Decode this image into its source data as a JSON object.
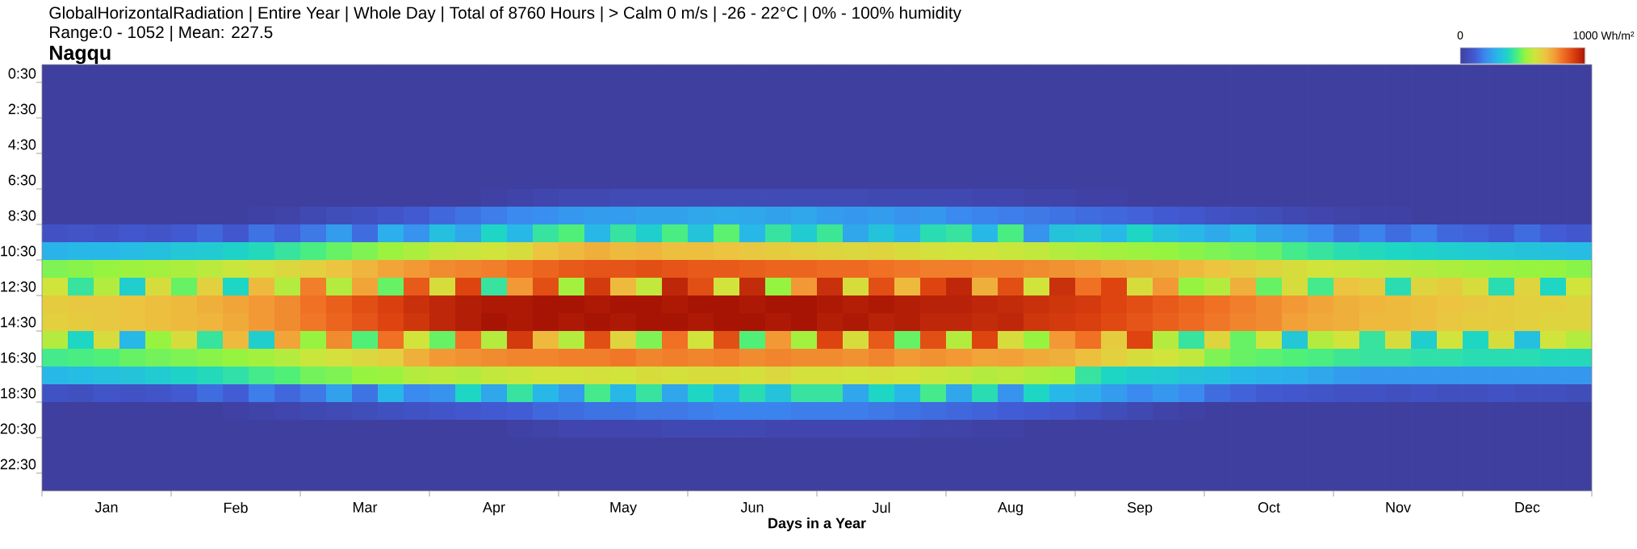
{
  "chart_data": {
    "type": "heatmap",
    "title": "GlobalHorizontalRadiation | Entire Year | Whole Day | Total of 8760 Hours | > Calm 0 m/s | -26 - 22°C | 0% - 100% humidity",
    "subtitle": "Range:0 - 1052 | Mean: 227.5",
    "annotations": [
      "Nagqu"
    ],
    "xlabel": "Days in a Year",
    "clabel": "Wh/m²",
    "clim": [
      0,
      1000
    ],
    "cticks": [
      0,
      1000
    ],
    "categories": [
      null,
      null,
      "Jan",
      null,
      null,
      null,
      null,
      "Feb",
      null,
      null,
      null,
      null,
      "Mar",
      null,
      null,
      null,
      null,
      "Apr",
      null,
      null,
      null,
      null,
      "May",
      null,
      null,
      null,
      null,
      "Jun",
      null,
      null,
      null,
      null,
      "Jul",
      null,
      null,
      null,
      null,
      "Aug",
      null,
      null,
      null,
      null,
      "Sep",
      null,
      null,
      null,
      null,
      "Oct",
      null,
      null,
      null,
      null,
      "Nov",
      null,
      null,
      null,
      null,
      "Dec",
      null,
      null
    ],
    "y_categories": [
      "0:30",
      null,
      "2:30",
      null,
      "4:30",
      null,
      "6:30",
      null,
      "8:30",
      null,
      "10:30",
      null,
      "12:30",
      null,
      "14:30",
      null,
      "16:30",
      null,
      "18:30",
      null,
      "20:30",
      null,
      "22:30",
      null
    ],
    "cells": [
      [
        0,
        0,
        0,
        0,
        0,
        0,
        0,
        0,
        0,
        0,
        0,
        0,
        0,
        0,
        0,
        0,
        0,
        0,
        0,
        0,
        0,
        0,
        0,
        0,
        0,
        0,
        0,
        0,
        0,
        0,
        0,
        0,
        0,
        0,
        0,
        0,
        0,
        0,
        0,
        0,
        0,
        0,
        0,
        0,
        0,
        0,
        0,
        0,
        0,
        0,
        0,
        0,
        0,
        0,
        0,
        0,
        0,
        0,
        0,
        0
      ],
      [
        0,
        0,
        0,
        0,
        0,
        0,
        0,
        0,
        0,
        0,
        0,
        0,
        0,
        0,
        0,
        0,
        0,
        0,
        0,
        0,
        0,
        0,
        0,
        0,
        0,
        0,
        0,
        0,
        0,
        0,
        0,
        0,
        0,
        0,
        0,
        0,
        0,
        0,
        0,
        0,
        0,
        0,
        0,
        0,
        0,
        0,
        0,
        0,
        0,
        0,
        0,
        0,
        0,
        0,
        0,
        0,
        0,
        0,
        0,
        0
      ],
      [
        0,
        0,
        0,
        0,
        0,
        0,
        0,
        0,
        0,
        0,
        0,
        0,
        0,
        0,
        0,
        0,
        0,
        0,
        0,
        0,
        0,
        0,
        0,
        0,
        0,
        0,
        0,
        0,
        0,
        0,
        0,
        0,
        0,
        0,
        0,
        0,
        0,
        0,
        0,
        0,
        0,
        0,
        0,
        0,
        0,
        0,
        0,
        0,
        0,
        0,
        0,
        0,
        0,
        0,
        0,
        0,
        0,
        0,
        0,
        0
      ],
      [
        0,
        0,
        0,
        0,
        0,
        0,
        0,
        0,
        0,
        0,
        0,
        0,
        0,
        0,
        0,
        0,
        0,
        0,
        0,
        0,
        0,
        0,
        0,
        0,
        0,
        0,
        0,
        0,
        0,
        0,
        0,
        0,
        0,
        0,
        0,
        0,
        0,
        0,
        0,
        0,
        0,
        0,
        0,
        0,
        0,
        0,
        0,
        0,
        0,
        0,
        0,
        0,
        0,
        0,
        0,
        0,
        0,
        0,
        0,
        0
      ],
      [
        0,
        0,
        0,
        0,
        0,
        0,
        0,
        0,
        0,
        0,
        0,
        0,
        0,
        0,
        0,
        0,
        0,
        0,
        0,
        0,
        0,
        0,
        0,
        0,
        0,
        0,
        0,
        0,
        0,
        0,
        0,
        0,
        0,
        0,
        0,
        0,
        0,
        0,
        0,
        0,
        0,
        0,
        0,
        0,
        0,
        0,
        0,
        0,
        0,
        0,
        0,
        0,
        0,
        0,
        0,
        0,
        0,
        0,
        0,
        0
      ],
      [
        0,
        0,
        0,
        0,
        0,
        0,
        0,
        0,
        0,
        0,
        0,
        0,
        0,
        0,
        0,
        0,
        0,
        0,
        0,
        0,
        0,
        0,
        0,
        0,
        0,
        0,
        0,
        0,
        0,
        0,
        0,
        0,
        0,
        0,
        0,
        0,
        0,
        0,
        0,
        0,
        0,
        0,
        0,
        0,
        0,
        0,
        0,
        0,
        0,
        0,
        0,
        0,
        0,
        0,
        0,
        0,
        0,
        0,
        0,
        0
      ],
      [
        0,
        0,
        0,
        0,
        0,
        0,
        0,
        0,
        0,
        0,
        0,
        0,
        0,
        0,
        0,
        0,
        0,
        0,
        0,
        0,
        0,
        0,
        0,
        0,
        0,
        0,
        0,
        0,
        0,
        0,
        0,
        0,
        0,
        0,
        0,
        0,
        0,
        0,
        0,
        0,
        0,
        0,
        0,
        0,
        0,
        0,
        0,
        0,
        0,
        0,
        0,
        0,
        0,
        0,
        0,
        0,
        0,
        0,
        0,
        0
      ],
      [
        0,
        0,
        0,
        0,
        0,
        0,
        0,
        0,
        0,
        0,
        0,
        0,
        0,
        0,
        0,
        0,
        0,
        10,
        20,
        30,
        40,
        40,
        50,
        50,
        50,
        50,
        50,
        50,
        50,
        50,
        50,
        50,
        40,
        40,
        40,
        40,
        30,
        30,
        20,
        20,
        10,
        10,
        0,
        0,
        0,
        0,
        0,
        0,
        0,
        0,
        0,
        0,
        0,
        0,
        0,
        0,
        0,
        0,
        0,
        0
      ],
      [
        0,
        0,
        0,
        0,
        0,
        0,
        0,
        0,
        10,
        20,
        40,
        60,
        70,
        90,
        110,
        140,
        160,
        180,
        200,
        210,
        230,
        240,
        240,
        250,
        250,
        260,
        270,
        260,
        250,
        260,
        240,
        230,
        240,
        220,
        230,
        200,
        190,
        180,
        170,
        160,
        150,
        140,
        130,
        110,
        100,
        80,
        70,
        60,
        40,
        30,
        20,
        10,
        10,
        0,
        0,
        0,
        0,
        0,
        0,
        0
      ],
      [
        80,
        90,
        80,
        100,
        90,
        110,
        140,
        100,
        160,
        130,
        170,
        240,
        150,
        280,
        220,
        320,
        260,
        380,
        300,
        420,
        460,
        300,
        420,
        360,
        450,
        330,
        470,
        300,
        420,
        350,
        430,
        260,
        330,
        280,
        400,
        420,
        300,
        450,
        220,
        330,
        340,
        300,
        380,
        320,
        300,
        270,
        300,
        250,
        230,
        200,
        160,
        190,
        150,
        180,
        140,
        130,
        110,
        150,
        120,
        100
      ],
      [
        290,
        300,
        300,
        310,
        320,
        340,
        350,
        370,
        390,
        420,
        450,
        480,
        500,
        530,
        550,
        580,
        590,
        600,
        620,
        680,
        700,
        720,
        700,
        710,
        690,
        690,
        680,
        670,
        660,
        650,
        640,
        630,
        640,
        620,
        610,
        600,
        600,
        590,
        580,
        560,
        550,
        540,
        530,
        520,
        510,
        500,
        490,
        480,
        440,
        420,
        400,
        390,
        380,
        370,
        360,
        350,
        340,
        330,
        320,
        310
      ],
      [
        500,
        510,
        520,
        530,
        540,
        550,
        570,
        590,
        610,
        630,
        650,
        680,
        710,
        740,
        760,
        780,
        790,
        800,
        820,
        840,
        860,
        870,
        870,
        880,
        870,
        860,
        860,
        850,
        840,
        840,
        830,
        830,
        820,
        810,
        800,
        800,
        790,
        790,
        780,
        770,
        760,
        740,
        730,
        720,
        700,
        680,
        660,
        640,
        620,
        600,
        590,
        580,
        570,
        560,
        550,
        540,
        530,
        520,
        520,
        510
      ],
      [
        600,
        420,
        560,
        360,
        620,
        480,
        650,
        380,
        700,
        560,
        800,
        560,
        740,
        480,
        860,
        620,
        900,
        420,
        760,
        880,
        540,
        920,
        700,
        580,
        960,
        880,
        600,
        950,
        520,
        760,
        940,
        620,
        880,
        700,
        900,
        960,
        720,
        880,
        600,
        940,
        820,
        900,
        620,
        760,
        520,
        560,
        720,
        480,
        620,
        440,
        680,
        660,
        400,
        640,
        660,
        620,
        400,
        640,
        380,
        600
      ],
      [
        660,
        670,
        670,
        680,
        690,
        700,
        720,
        740,
        760,
        780,
        820,
        850,
        880,
        910,
        940,
        960,
        980,
        990,
        990,
        1000,
        1000,
        990,
        1000,
        1000,
        990,
        1000,
        1000,
        990,
        1000,
        1000,
        990,
        980,
        990,
        980,
        970,
        970,
        960,
        950,
        940,
        930,
        920,
        900,
        880,
        860,
        840,
        820,
        800,
        780,
        760,
        740,
        720,
        710,
        700,
        690,
        680,
        670,
        660,
        650,
        650,
        640
      ],
      [
        650,
        660,
        670,
        680,
        690,
        700,
        710,
        730,
        760,
        780,
        810,
        840,
        870,
        900,
        930,
        960,
        980,
        1000,
        990,
        1000,
        990,
        1000,
        990,
        1000,
        1000,
        990,
        1000,
        1000,
        990,
        1000,
        980,
        990,
        970,
        980,
        960,
        960,
        950,
        960,
        930,
        920,
        910,
        890,
        870,
        850,
        830,
        810,
        790,
        780,
        750,
        730,
        720,
        700,
        700,
        690,
        670,
        660,
        660,
        650,
        640,
        640
      ],
      [
        560,
        380,
        620,
        300,
        520,
        620,
        420,
        700,
        360,
        740,
        520,
        780,
        460,
        820,
        600,
        480,
        820,
        560,
        920,
        700,
        560,
        880,
        640,
        500,
        820,
        600,
        880,
        460,
        760,
        540,
        900,
        620,
        860,
        480,
        880,
        560,
        900,
        620,
        520,
        760,
        820,
        660,
        900,
        560,
        420,
        640,
        480,
        600,
        340,
        560,
        600,
        420,
        620,
        360,
        600,
        380,
        620,
        320,
        600,
        560
      ],
      [
        440,
        450,
        460,
        480,
        490,
        500,
        510,
        520,
        540,
        560,
        590,
        610,
        630,
        650,
        720,
        760,
        770,
        780,
        790,
        790,
        800,
        800,
        810,
        790,
        800,
        790,
        800,
        780,
        790,
        780,
        780,
        770,
        790,
        760,
        770,
        760,
        740,
        750,
        730,
        720,
        690,
        650,
        620,
        600,
        580,
        500,
        480,
        470,
        460,
        450,
        430,
        420,
        420,
        410,
        410,
        400,
        400,
        400,
        390,
        390
      ],
      [
        300,
        310,
        320,
        330,
        350,
        370,
        390,
        410,
        440,
        460,
        490,
        500,
        520,
        530,
        560,
        570,
        560,
        580,
        590,
        600,
        600,
        610,
        600,
        620,
        610,
        620,
        620,
        610,
        630,
        610,
        610,
        600,
        610,
        600,
        590,
        580,
        560,
        570,
        550,
        540,
        420,
        380,
        360,
        350,
        330,
        320,
        300,
        290,
        280,
        260,
        240,
        230,
        230,
        230,
        230,
        230,
        230,
        230,
        230,
        230
      ],
      [
        80,
        70,
        90,
        80,
        90,
        110,
        150,
        120,
        180,
        140,
        170,
        250,
        160,
        300,
        200,
        220,
        380,
        260,
        420,
        300,
        240,
        440,
        300,
        420,
        260,
        380,
        300,
        400,
        330,
        420,
        420,
        260,
        380,
        300,
        440,
        260,
        400,
        220,
        380,
        300,
        280,
        240,
        200,
        230,
        200,
        150,
        130,
        110,
        100,
        90,
        80,
        80,
        70,
        80,
        70,
        70,
        80,
        70,
        70,
        60
      ],
      [
        0,
        0,
        0,
        0,
        0,
        0,
        0,
        10,
        20,
        30,
        40,
        50,
        60,
        70,
        80,
        90,
        100,
        110,
        120,
        140,
        150,
        160,
        160,
        170,
        170,
        180,
        190,
        190,
        190,
        180,
        180,
        180,
        170,
        160,
        150,
        140,
        130,
        120,
        110,
        100,
        80,
        60,
        40,
        20,
        10,
        0,
        0,
        0,
        0,
        0,
        0,
        0,
        0,
        0,
        0,
        0,
        0,
        0,
        0,
        0
      ],
      [
        0,
        0,
        0,
        0,
        0,
        0,
        0,
        0,
        0,
        0,
        0,
        0,
        0,
        0,
        0,
        0,
        0,
        0,
        10,
        20,
        30,
        30,
        30,
        30,
        40,
        40,
        40,
        40,
        30,
        30,
        30,
        30,
        30,
        30,
        20,
        20,
        10,
        10,
        0,
        0,
        0,
        0,
        0,
        0,
        0,
        0,
        0,
        0,
        0,
        0,
        0,
        0,
        0,
        0,
        0,
        0,
        0,
        0,
        0,
        0
      ],
      [
        0,
        0,
        0,
        0,
        0,
        0,
        0,
        0,
        0,
        0,
        0,
        0,
        0,
        0,
        0,
        0,
        0,
        0,
        0,
        0,
        0,
        0,
        0,
        0,
        0,
        0,
        0,
        0,
        0,
        0,
        0,
        0,
        0,
        0,
        0,
        0,
        0,
        0,
        0,
        0,
        0,
        0,
        0,
        0,
        0,
        0,
        0,
        0,
        0,
        0,
        0,
        0,
        0,
        0,
        0,
        0,
        0,
        0,
        0,
        0
      ],
      [
        0,
        0,
        0,
        0,
        0,
        0,
        0,
        0,
        0,
        0,
        0,
        0,
        0,
        0,
        0,
        0,
        0,
        0,
        0,
        0,
        0,
        0,
        0,
        0,
        0,
        0,
        0,
        0,
        0,
        0,
        0,
        0,
        0,
        0,
        0,
        0,
        0,
        0,
        0,
        0,
        0,
        0,
        0,
        0,
        0,
        0,
        0,
        0,
        0,
        0,
        0,
        0,
        0,
        0,
        0,
        0,
        0,
        0,
        0,
        0
      ],
      [
        0,
        0,
        0,
        0,
        0,
        0,
        0,
        0,
        0,
        0,
        0,
        0,
        0,
        0,
        0,
        0,
        0,
        0,
        0,
        0,
        0,
        0,
        0,
        0,
        0,
        0,
        0,
        0,
        0,
        0,
        0,
        0,
        0,
        0,
        0,
        0,
        0,
        0,
        0,
        0,
        0,
        0,
        0,
        0,
        0,
        0,
        0,
        0,
        0,
        0,
        0,
        0,
        0,
        0,
        0,
        0,
        0,
        0,
        0,
        0
      ]
    ]
  }
}
